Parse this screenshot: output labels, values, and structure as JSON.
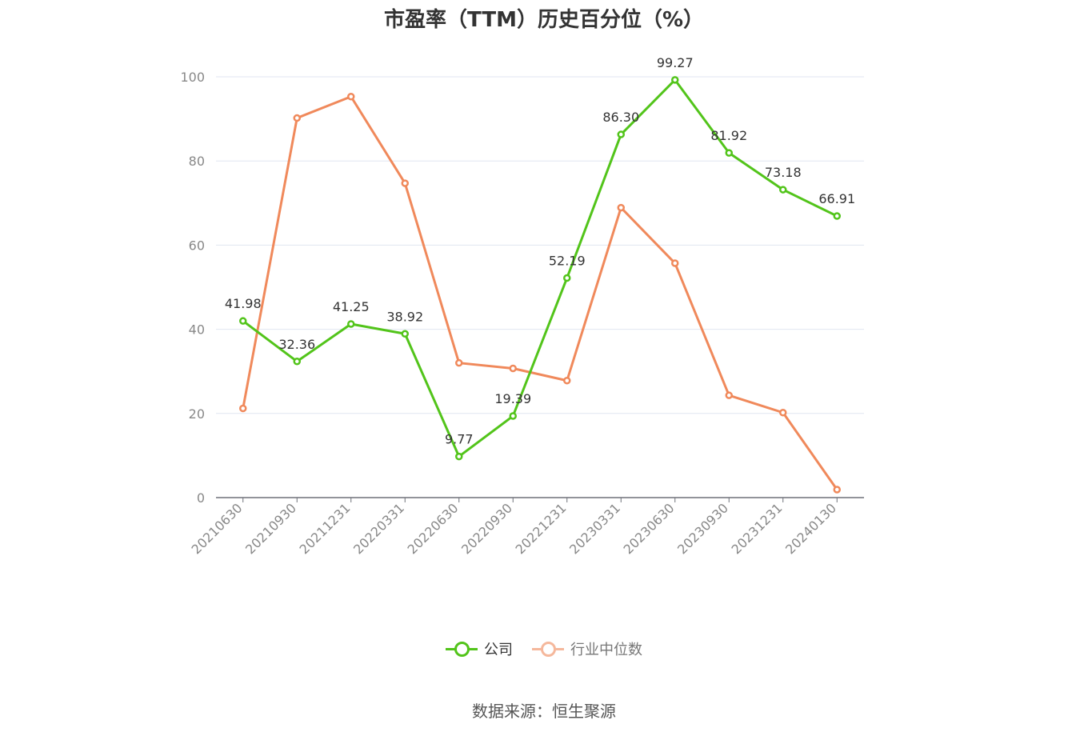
{
  "title": "市盈率（TTM）历史百分位（%）",
  "source": "数据来源：恒生聚源",
  "chart_data": {
    "type": "line",
    "title": "市盈率（TTM）历史百分位（%）",
    "categories": [
      "20210630",
      "20210930",
      "20211231",
      "20220331",
      "20220630",
      "20220930",
      "20221231",
      "20230331",
      "20230630",
      "20230930",
      "20231231",
      "20240130"
    ],
    "ylim": [
      0,
      100
    ],
    "yticks": [
      0,
      20,
      40,
      60,
      80,
      100
    ],
    "grid": true,
    "legend_position": "bottom",
    "series": [
      {
        "name": "公司",
        "color": "#52c41a",
        "labels": true,
        "values": [
          41.98,
          32.36,
          41.25,
          38.92,
          9.77,
          19.39,
          52.19,
          86.3,
          99.27,
          81.92,
          73.18,
          66.91
        ]
      },
      {
        "name": "行业中位数",
        "color": "#f0895b",
        "labels": false,
        "values": [
          21.2,
          90.2,
          95.3,
          74.7,
          32.0,
          30.7,
          27.8,
          68.9,
          55.7,
          24.3,
          20.2,
          1.9
        ]
      }
    ]
  }
}
